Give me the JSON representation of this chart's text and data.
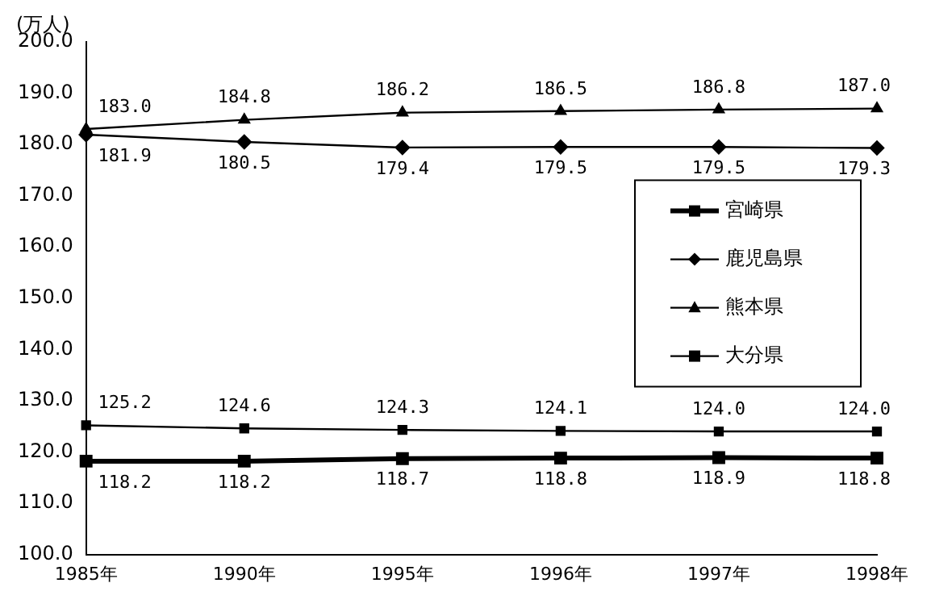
{
  "chart_data": {
    "type": "line",
    "ylabel": "(万人)",
    "categories": [
      "1985年",
      "1990年",
      "1995年",
      "1996年",
      "1997年",
      "1998年"
    ],
    "ylim": [
      100,
      200
    ],
    "yticks": [
      {
        "value": 100,
        "label": "100.0"
      },
      {
        "value": 110,
        "label": "110.0"
      },
      {
        "value": 120,
        "label": "120.0"
      },
      {
        "value": 130,
        "label": "130.0"
      },
      {
        "value": 140,
        "label": "140.0"
      },
      {
        "value": 150,
        "label": "150.0"
      },
      {
        "value": 160,
        "label": "160.0"
      },
      {
        "value": 170,
        "label": "170.0"
      },
      {
        "value": 180,
        "label": "180.0"
      },
      {
        "value": 190,
        "label": "190.0"
      },
      {
        "value": 200,
        "label": "200.0"
      }
    ],
    "grid": false,
    "legend": "right",
    "line_style": "solid",
    "series": [
      {
        "name": "宮崎県",
        "color": "#000000",
        "marker": "square",
        "values": [
          118.2,
          118.2,
          118.7,
          118.8,
          118.9,
          118.8
        ],
        "value_labels": [
          "118.2",
          "118.2",
          "118.7",
          "118.8",
          "118.9",
          "118.8"
        ]
      },
      {
        "name": "鹿児島県",
        "color": "#000000",
        "marker": "diamond",
        "values": [
          181.9,
          180.5,
          179.4,
          179.5,
          179.5,
          179.3
        ],
        "value_labels": [
          "181.9",
          "180.5",
          "179.4",
          "179.5",
          "179.5",
          "179.3"
        ]
      },
      {
        "name": "熊本県",
        "color": "#000000",
        "marker": "triangle",
        "values": [
          183.0,
          184.8,
          186.2,
          186.5,
          186.8,
          187.0
        ],
        "value_labels": [
          "183.0",
          "184.8",
          "186.2",
          "186.5",
          "186.8",
          "187.0"
        ]
      },
      {
        "name": "大分県",
        "color": "#000000",
        "marker": "square",
        "values": [
          125.2,
          124.6,
          124.3,
          124.1,
          124.0,
          124.0
        ],
        "value_labels": [
          "125.2",
          "124.6",
          "124.3",
          "124.1",
          "124.0",
          "124.0"
        ]
      }
    ]
  }
}
